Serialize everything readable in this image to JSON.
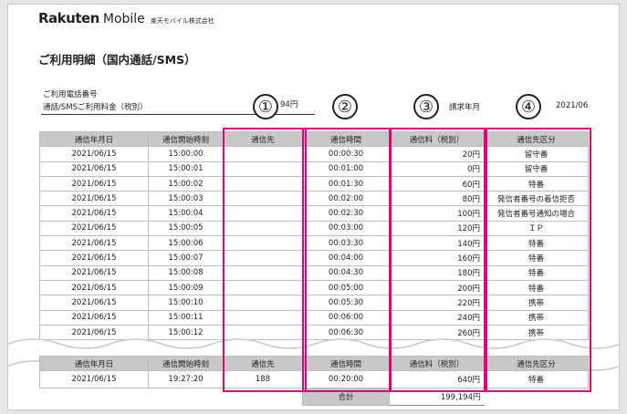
{
  "header": {
    "brand": "Rakuten",
    "brand_suffix": "Mobile",
    "company": "楽天モバイル株式会社",
    "title": "ご利用明細（国内通話/SMS）"
  },
  "summary": {
    "phone_label": "ご利用電話番号",
    "fee_label": "通話/SMSご利用料金（税別）",
    "fee_value": "94円",
    "bill_month_label": "請求年月",
    "bill_month_value": "2021/06"
  },
  "markers": [
    "①",
    "②",
    "③",
    "④"
  ],
  "table": {
    "headers": [
      "通信年月日",
      "通信開始時刻",
      "通信先",
      "通信時間",
      "通信料（税別）",
      "通信先区分"
    ],
    "rows": [
      [
        "2021/06/15",
        "15:00:00",
        "",
        "00:00:30",
        "20円",
        "留守番"
      ],
      [
        "2021/06/15",
        "15:00:01",
        "",
        "00:01:00",
        "0円",
        "留守番"
      ],
      [
        "2021/06/15",
        "15:00:02",
        "",
        "00:01:30",
        "60円",
        "特番"
      ],
      [
        "2021/06/15",
        "15:00:03",
        "",
        "00:02:00",
        "80円",
        "発信者番号の着信拒否"
      ],
      [
        "2021/06/15",
        "15:00:04",
        "",
        "00:02:30",
        "100円",
        "発信者番号通知の場合"
      ],
      [
        "2021/06/15",
        "15:00:05",
        "",
        "00:03:00",
        "120円",
        "ＩＰ"
      ],
      [
        "2021/06/15",
        "15:00:06",
        "",
        "00:03:30",
        "140円",
        "特番"
      ],
      [
        "2021/06/15",
        "15:00:07",
        "",
        "00:04:00",
        "160円",
        "特番"
      ],
      [
        "2021/06/15",
        "15:00:08",
        "",
        "00:04:30",
        "180円",
        "特番"
      ],
      [
        "2021/06/15",
        "15:00:09",
        "",
        "00:05:00",
        "200円",
        "特番"
      ],
      [
        "2021/06/15",
        "15:00:10",
        "",
        "00:05:30",
        "220円",
        "携帯"
      ],
      [
        "2021/06/15",
        "15:00:11",
        "",
        "00:06:00",
        "240円",
        "携帯"
      ],
      [
        "2021/06/15",
        "15:00:12",
        "",
        "00:06:30",
        "260円",
        "携帯"
      ]
    ],
    "last_row": [
      "2021/06/15",
      "19:27:20",
      "188",
      "00:20:00",
      "640円",
      "特番"
    ],
    "total_label": "合計",
    "total_value": "199,194円"
  }
}
